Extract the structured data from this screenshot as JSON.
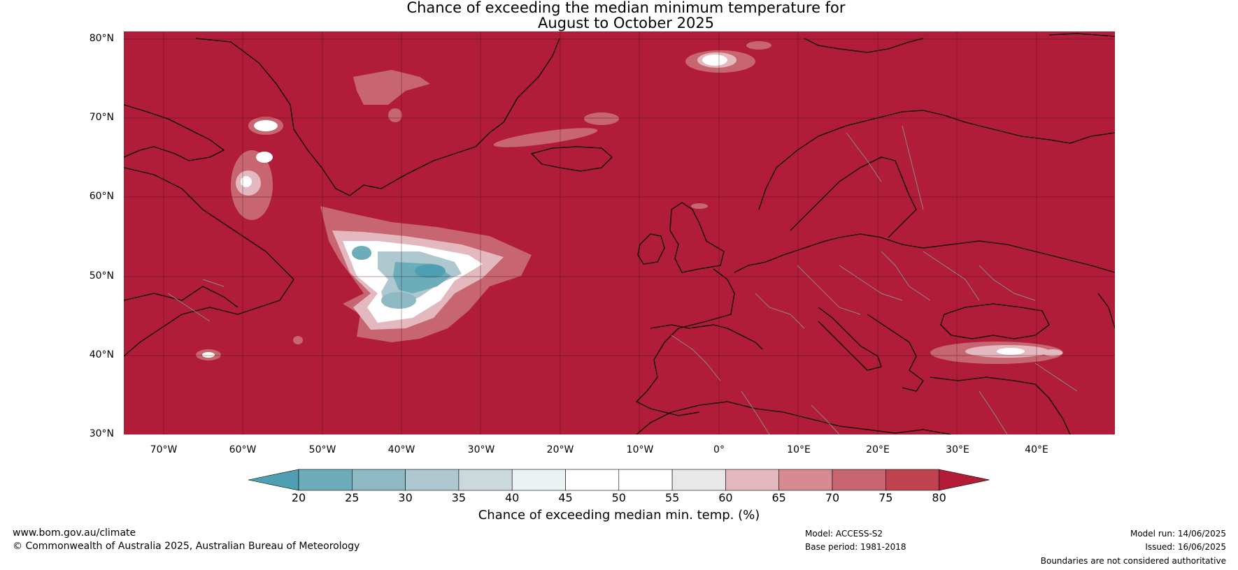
{
  "title_line1": "Chance of exceeding the median minimum temperature for",
  "title_line2": "August to October 2025",
  "lat_labels": [
    "80°N",
    "70°N",
    "60°N",
    "50°N",
    "40°N",
    "30°N"
  ],
  "lon_labels": [
    "70°W",
    "60°W",
    "50°W",
    "40°W",
    "30°W",
    "20°W",
    "10°W",
    "0°",
    "10°E",
    "20°E",
    "30°E",
    "40°E"
  ],
  "colorbar": {
    "label": "Chance of exceeding median min. temp. (%)",
    "ticks": [
      "20",
      "25",
      "30",
      "35",
      "40",
      "45",
      "50",
      "55",
      "60",
      "65",
      "70",
      "75",
      "80"
    ],
    "colors": [
      "#4f9fb3",
      "#6cadb9",
      "#8db8c4",
      "#adc8cf",
      "#cbd8dc",
      "#eaf2f3",
      "#ffffff",
      "#ffffff",
      "#e8e8e8",
      "#e3b8bf",
      "#d88a93",
      "#c76670",
      "#bf4450",
      "#b31b37"
    ]
  },
  "background_color": "#b11c38",
  "footer": {
    "url": "www.bom.gov.au/climate",
    "copyright": "© Commonwealth of Australia 2025, Australian Bureau of Meteorology",
    "model": "Model: ACCESS-S2",
    "base_period": "Base period: 1981-2018",
    "model_run": "Model run: 14/06/2025",
    "issued": "Issued: 16/06/2025",
    "disclaimer": "Boundaries are not considered authoritative"
  }
}
